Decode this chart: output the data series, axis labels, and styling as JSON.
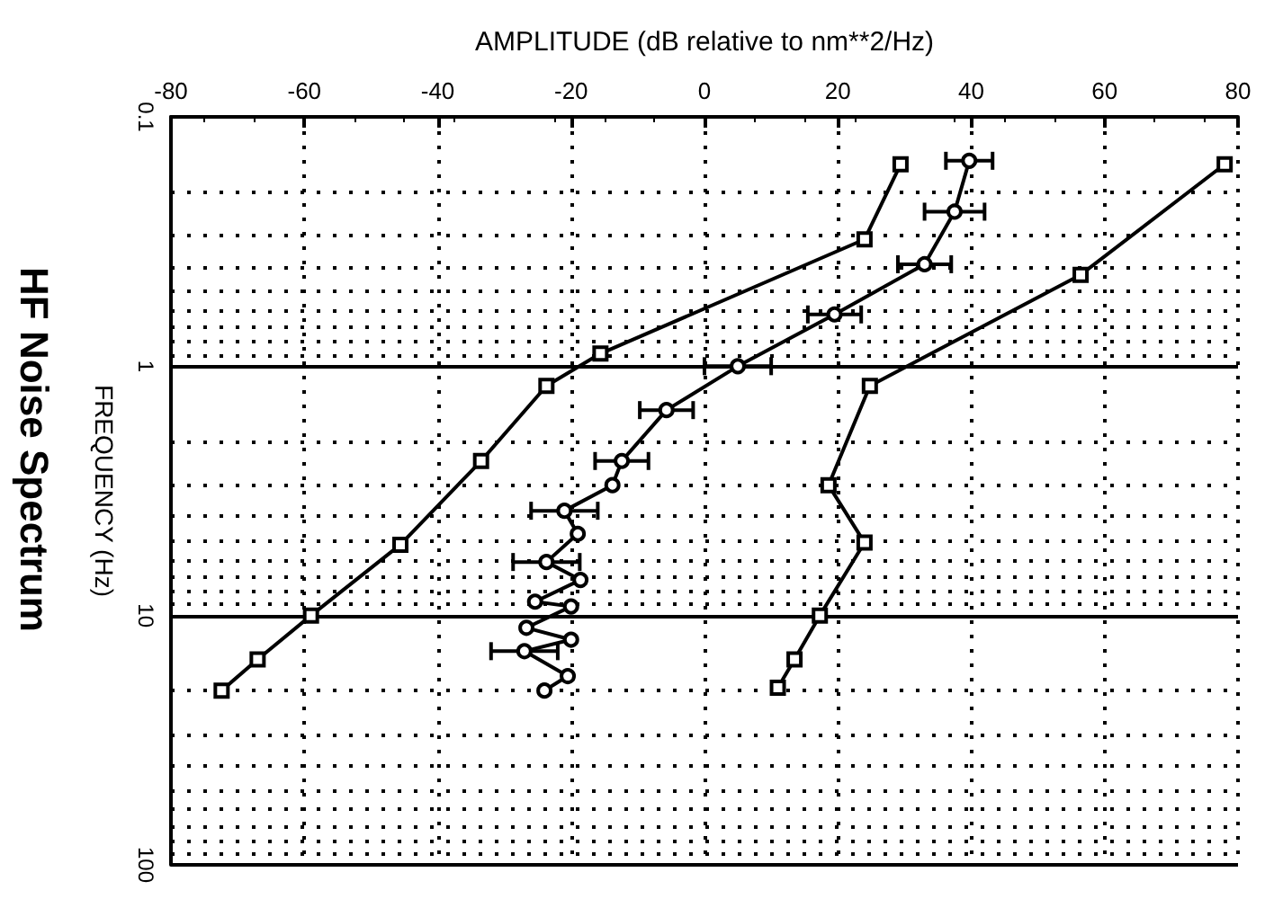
{
  "chart_data": {
    "type": "line",
    "title": "HF Noise Spectrum",
    "xlabel": "AMPLITUDE (dB relative to nm**2/Hz)",
    "ylabel": "FREQUENCY (Hz)",
    "xlim": [
      -80,
      80
    ],
    "xticks": [
      -80,
      -60,
      -40,
      -20,
      0,
      20,
      40,
      60,
      80
    ],
    "ylim": [
      100,
      0.1
    ],
    "yticks": [
      0.1,
      1,
      10,
      100
    ],
    "log": "y",
    "grid": true,
    "series": [
      {
        "color": "#000000",
        "marker": "square",
        "x": [
          29.4,
          24,
          -15.6,
          -23.7,
          -33.5,
          -45.6,
          -59,
          -67,
          -72.4
        ],
        "values": [
          0.155,
          0.31,
          0.89,
          1.2,
          2.4,
          5.2,
          10,
          15,
          20
        ]
      },
      {
        "color": "#000000",
        "marker": "circle",
        "x": [
          39.7,
          37.5,
          33,
          19.5,
          5,
          -5.7,
          -12.4,
          -13.8,
          -21,
          -19,
          -23.7,
          -18.6,
          -25.4,
          -20,
          -26.7,
          -20,
          -27,
          -20.5,
          -24
        ],
        "values": [
          0.15,
          0.24,
          0.39,
          0.62,
          1,
          1.5,
          2.4,
          3,
          3.8,
          4.7,
          6.1,
          7.2,
          8.8,
          9.2,
          11.2,
          12.5,
          13.9,
          17.5,
          20
        ],
        "xerrors": [
          3.5,
          4.5,
          4,
          4,
          5,
          4,
          4,
          null,
          5,
          null,
          5,
          null,
          null,
          null,
          null,
          null,
          5,
          null,
          null
        ]
      },
      {
        "color": "#000000",
        "marker": "square",
        "x": [
          78,
          56.4,
          24.8,
          18.6,
          24,
          17.3,
          13.5,
          11
        ],
        "values": [
          0.155,
          0.43,
          1.2,
          3,
          5.1,
          10,
          15,
          19.5
        ]
      }
    ]
  }
}
